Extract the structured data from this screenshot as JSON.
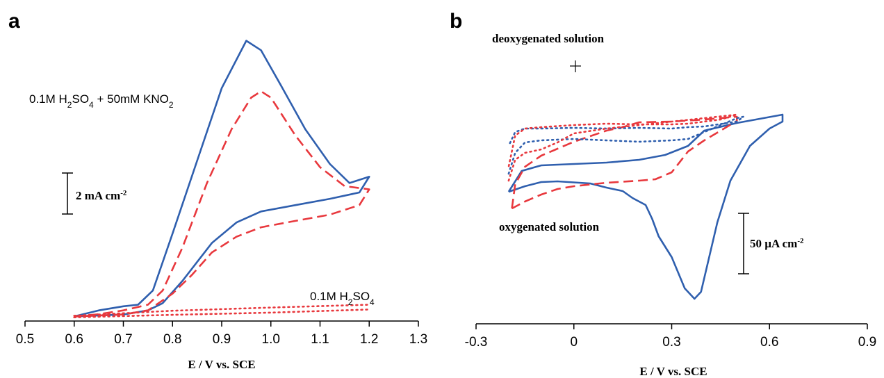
{
  "colors": {
    "blue": "#2f5fae",
    "red": "#e8383d",
    "axis": "#000000"
  },
  "chart_data": [
    {
      "panel_label": "a",
      "type": "line",
      "xlabel": "E / V vs. SCE",
      "ylabel": "",
      "xlim": [
        0.5,
        1.3
      ],
      "xticks": [
        0.5,
        0.6,
        0.7,
        0.8,
        0.9,
        1.0,
        1.1,
        1.2,
        1.3
      ],
      "xtick_labels": [
        "0.5",
        "0.6",
        "0.7",
        "0.8",
        "0.9",
        "1.0",
        "1.1",
        "1.2",
        "1.3"
      ],
      "y_units": "mA cm-2 (relative, baseline = 0)",
      "ylim": [
        0,
        9
      ],
      "scale_bar": {
        "label": "2 mA cm-2",
        "value": 2
      },
      "annotations": [
        {
          "text": "0.1M H2SO4 + 50mM KNO2"
        },
        {
          "text": "0.1M H2SO4"
        }
      ],
      "series": [
        {
          "color": "blue",
          "style": "solid",
          "points": [
            [
              0.6,
              0.08
            ],
            [
              0.65,
              0.27
            ],
            [
              0.7,
              0.4
            ],
            [
              0.73,
              0.45
            ],
            [
              0.76,
              0.9
            ],
            [
              0.8,
              2.7
            ],
            [
              0.85,
              5.0
            ],
            [
              0.9,
              7.3
            ],
            [
              0.95,
              8.8
            ],
            [
              0.98,
              8.5
            ],
            [
              1.02,
              7.4
            ],
            [
              1.07,
              6.0
            ],
            [
              1.12,
              4.9
            ],
            [
              1.16,
              4.3
            ],
            [
              1.2,
              4.5
            ],
            [
              1.18,
              4.0
            ],
            [
              1.12,
              3.8
            ],
            [
              1.05,
              3.6
            ],
            [
              0.98,
              3.4
            ],
            [
              0.93,
              3.05
            ],
            [
              0.88,
              2.4
            ],
            [
              0.85,
              1.8
            ],
            [
              0.82,
              1.2
            ],
            [
              0.78,
              0.5
            ],
            [
              0.75,
              0.27
            ],
            [
              0.7,
              0.14
            ],
            [
              0.6,
              0.08
            ]
          ]
        },
        {
          "color": "red",
          "style": "dashed",
          "points": [
            [
              0.6,
              0.08
            ],
            [
              0.65,
              0.15
            ],
            [
              0.7,
              0.27
            ],
            [
              0.75,
              0.45
            ],
            [
              0.78,
              0.9
            ],
            [
              0.82,
              2.25
            ],
            [
              0.87,
              4.3
            ],
            [
              0.92,
              6.0
            ],
            [
              0.96,
              7.0
            ],
            [
              0.98,
              7.2
            ],
            [
              1.0,
              7.0
            ],
            [
              1.05,
              5.8
            ],
            [
              1.1,
              4.8
            ],
            [
              1.15,
              4.2
            ],
            [
              1.2,
              4.1
            ],
            [
              1.18,
              3.6
            ],
            [
              1.12,
              3.3
            ],
            [
              1.05,
              3.1
            ],
            [
              0.98,
              2.9
            ],
            [
              0.93,
              2.6
            ],
            [
              0.88,
              2.1
            ],
            [
              0.84,
              1.4
            ],
            [
              0.8,
              0.8
            ],
            [
              0.75,
              0.27
            ],
            [
              0.7,
              0.14
            ],
            [
              0.6,
              0.08
            ]
          ]
        },
        {
          "color": "red",
          "style": "dotted",
          "points": [
            [
              0.6,
              0.05
            ],
            [
              0.8,
              0.13
            ],
            [
              1.0,
              0.2
            ],
            [
              1.2,
              0.3
            ]
          ]
        },
        {
          "color": "red",
          "style": "dotted",
          "points": [
            [
              0.6,
              0.1
            ],
            [
              0.8,
              0.26
            ],
            [
              1.0,
              0.36
            ],
            [
              1.2,
              0.45
            ]
          ]
        }
      ]
    },
    {
      "panel_label": "b",
      "type": "line",
      "xlabel": "E / V vs. SCE",
      "ylabel": "",
      "xlim": [
        -0.3,
        0.9
      ],
      "xticks": [
        -0.3,
        0,
        0.3,
        0.6,
        0.9
      ],
      "xtick_labels": [
        "-0.3",
        "0",
        "0.3",
        "0.6",
        "0.9"
      ],
      "y_units": "µA cm-2 (relative)",
      "ylim": [
        -280,
        100
      ],
      "scale_bar": {
        "label": "50 µA cm-2",
        "value": 50
      },
      "annotations": [
        {
          "text": "deoxygenated solution"
        },
        {
          "text": "oxygenated solution"
        }
      ],
      "series": [
        {
          "color": "blue",
          "style": "solid",
          "points": [
            [
              -0.2,
              -96
            ],
            [
              -0.16,
              -66
            ],
            [
              -0.1,
              -58
            ],
            [
              0.0,
              -56
            ],
            [
              0.1,
              -54
            ],
            [
              0.2,
              -50
            ],
            [
              0.28,
              -43
            ],
            [
              0.35,
              -30
            ],
            [
              0.4,
              -8
            ],
            [
              0.5,
              3
            ],
            [
              0.64,
              15
            ],
            [
              0.64,
              5
            ],
            [
              0.6,
              -5
            ],
            [
              0.54,
              -30
            ],
            [
              0.48,
              -80
            ],
            [
              0.44,
              -140
            ],
            [
              0.41,
              -200
            ],
            [
              0.39,
              -240
            ],
            [
              0.37,
              -250
            ],
            [
              0.34,
              -235
            ],
            [
              0.3,
              -190
            ],
            [
              0.26,
              -160
            ],
            [
              0.24,
              -135
            ],
            [
              0.22,
              -115
            ],
            [
              0.18,
              -105
            ],
            [
              0.15,
              -95
            ],
            [
              0.1,
              -90
            ],
            [
              0.05,
              -84
            ],
            [
              -0.05,
              -81
            ],
            [
              -0.1,
              -82
            ],
            [
              -0.15,
              -88
            ],
            [
              -0.2,
              -96
            ]
          ]
        },
        {
          "color": "red",
          "style": "dashed",
          "points": [
            [
              -0.19,
              -120
            ],
            [
              -0.18,
              -85
            ],
            [
              -0.15,
              -60
            ],
            [
              -0.1,
              -44
            ],
            [
              -0.05,
              -34
            ],
            [
              0.0,
              -24
            ],
            [
              0.05,
              -16
            ],
            [
              0.1,
              -8
            ],
            [
              0.15,
              -3
            ],
            [
              0.2,
              4
            ],
            [
              0.3,
              5
            ],
            [
              0.4,
              8
            ],
            [
              0.5,
              12
            ],
            [
              0.5,
              6
            ],
            [
              0.45,
              -8
            ],
            [
              0.4,
              -22
            ],
            [
              0.35,
              -38
            ],
            [
              0.3,
              -68
            ],
            [
              0.25,
              -78
            ],
            [
              0.2,
              -80
            ],
            [
              0.1,
              -83
            ],
            [
              0.0,
              -88
            ],
            [
              -0.05,
              -92
            ],
            [
              -0.1,
              -100
            ],
            [
              -0.15,
              -110
            ],
            [
              -0.19,
              -120
            ]
          ]
        },
        {
          "color": "blue",
          "style": "dotted",
          "points": [
            [
              -0.2,
              -70
            ],
            [
              -0.18,
              -40
            ],
            [
              -0.15,
              -25
            ],
            [
              -0.1,
              -22
            ],
            [
              0.0,
              -20
            ],
            [
              0.1,
              -22
            ],
            [
              0.2,
              -24
            ],
            [
              0.3,
              -22
            ],
            [
              0.35,
              -20
            ],
            [
              0.4,
              -10
            ],
            [
              0.5,
              10
            ],
            [
              0.52,
              12
            ],
            [
              0.5,
              5
            ],
            [
              0.4,
              -2
            ],
            [
              0.35,
              -3
            ],
            [
              0.3,
              -5
            ],
            [
              0.2,
              -4
            ],
            [
              0.1,
              -5
            ],
            [
              0.0,
              -4
            ],
            [
              -0.1,
              -5
            ],
            [
              -0.15,
              -5
            ],
            [
              -0.18,
              -10
            ],
            [
              -0.2,
              -30
            ]
          ]
        },
        {
          "color": "red",
          "style": "dotted",
          "points": [
            [
              -0.2,
              -80
            ],
            [
              -0.18,
              -50
            ],
            [
              -0.15,
              -40
            ],
            [
              -0.1,
              -35
            ],
            [
              -0.05,
              -25
            ],
            [
              0.0,
              -12
            ],
            [
              0.1,
              -5
            ],
            [
              0.2,
              0
            ],
            [
              0.3,
              5
            ],
            [
              0.4,
              10
            ],
            [
              0.5,
              15
            ],
            [
              0.45,
              8
            ],
            [
              0.4,
              5
            ],
            [
              0.35,
              2
            ],
            [
              0.3,
              1
            ],
            [
              0.2,
              1
            ],
            [
              0.1,
              2
            ],
            [
              0.0,
              0
            ],
            [
              -0.1,
              -3
            ],
            [
              -0.15,
              -5
            ],
            [
              -0.18,
              -15
            ],
            [
              -0.2,
              -60
            ]
          ]
        }
      ]
    }
  ]
}
